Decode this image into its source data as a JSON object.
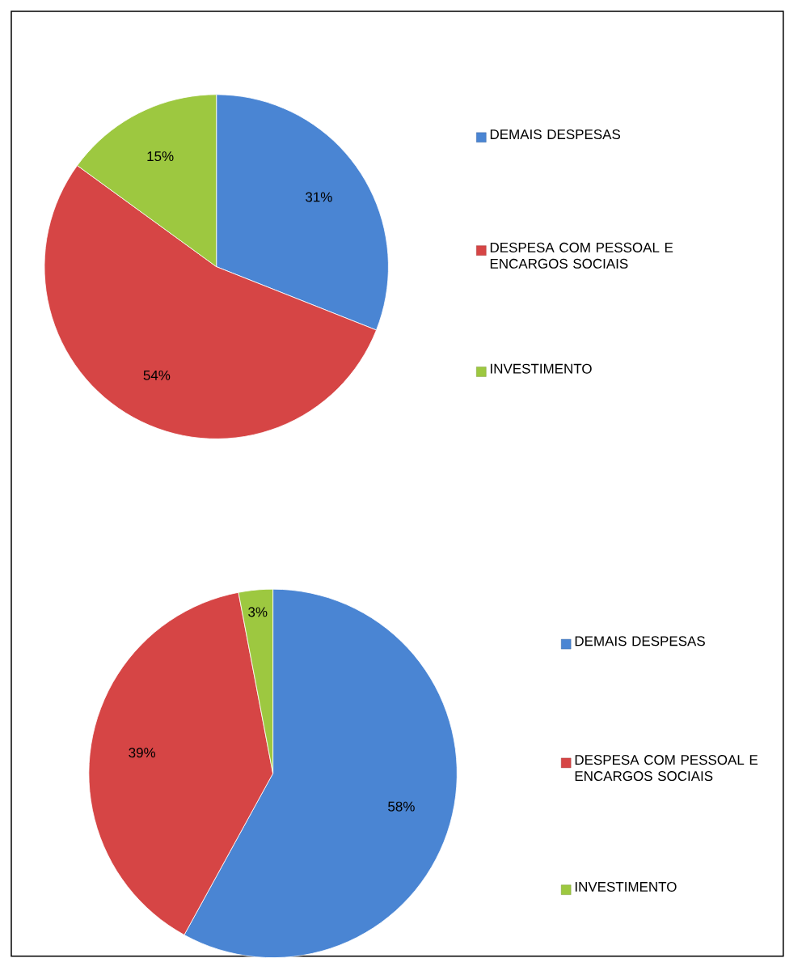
{
  "chart_data": [
    {
      "type": "pie",
      "categories": [
        "DEMAIS DESPESAS",
        "DESPESA COM PESSOAL E ENCARGOS SOCIAIS",
        "INVESTIMENTO"
      ],
      "values": [
        31,
        54,
        15
      ],
      "colors": [
        "#4a85d3",
        "#d64545",
        "#9dc840"
      ],
      "value_labels": [
        "31%",
        "54%",
        "15%"
      ],
      "legend": "right"
    },
    {
      "type": "pie",
      "categories": [
        "DEMAIS DESPESAS",
        "DESPESA COM PESSOAL E ENCARGOS SOCIAIS",
        "INVESTIMENTO"
      ],
      "values": [
        58,
        39,
        3
      ],
      "colors": [
        "#4a85d3",
        "#d64545",
        "#9dc840"
      ],
      "value_labels": [
        "58%",
        "39%",
        "3%"
      ],
      "legend": "right"
    }
  ]
}
